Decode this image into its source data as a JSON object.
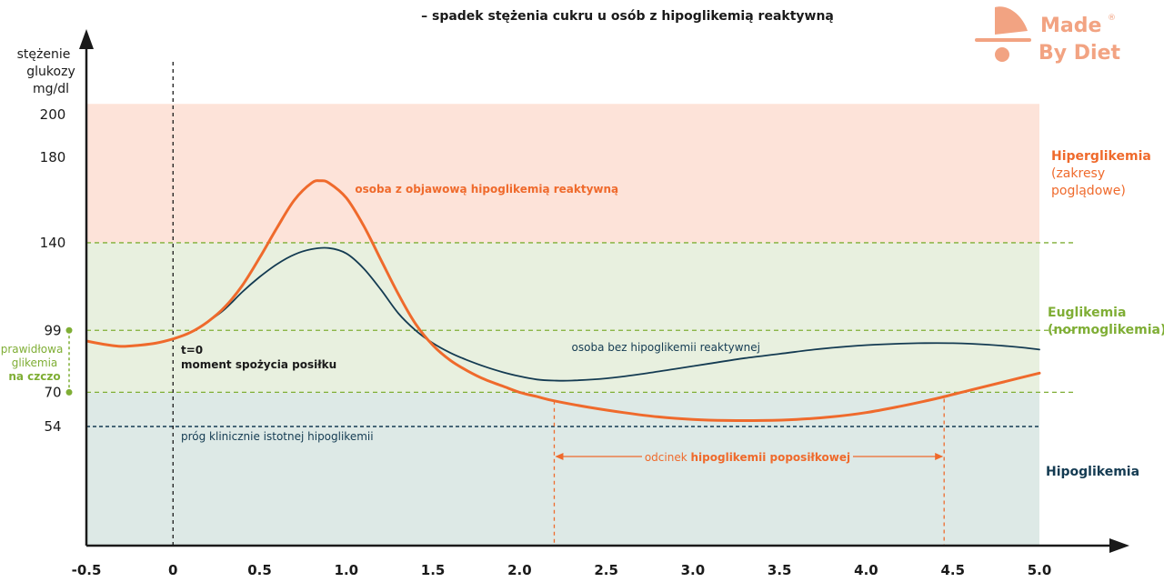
{
  "subtitle": "– spadek stężenia cukru u osób z hipoglikemią reaktywną",
  "logo": {
    "line1": "Made",
    "line2": "By Diet",
    "color": "#f2a382"
  },
  "colors": {
    "hyper_zone": "#fde3d9",
    "eu_zone": "#e8f0df",
    "hypo_zone": "#dde9e6",
    "orange": "#ef6a2c",
    "navy": "#143b52",
    "green": "#7fae35",
    "dark": "#1a1a1a"
  },
  "chart_data": {
    "type": "line",
    "title": "",
    "subtitle": "– spadek stężenia cukru u osób z hipoglikemią reaktywną",
    "ylabel": [
      "stężenie",
      "glukozy",
      "mg/dl"
    ],
    "xlabel": "",
    "xlim": [
      -0.5,
      5.0
    ],
    "x_ticks": [
      "-0.5",
      "0",
      "0.5",
      "1.0",
      "1.5",
      "2.0",
      "2.5",
      "3.0",
      "3.5",
      "4.0",
      "4.5",
      "5.0"
    ],
    "y_ticks": [
      200,
      180,
      140,
      99,
      70,
      54
    ],
    "zones": [
      {
        "name": "Hiperglikemia",
        "note": [
          "(zakresy",
          "poglądowe)"
        ],
        "from": 140,
        "to": 205
      },
      {
        "name": "Euglikemia",
        "note": [
          "(normoglikemia)"
        ],
        "from": 70,
        "to": 140
      },
      {
        "name": "Hipoglikemia",
        "from": 0,
        "to": 70
      }
    ],
    "reference_lines": [
      {
        "y": 140,
        "style": "dashed-green"
      },
      {
        "y": 99,
        "style": "dashed-green"
      },
      {
        "y": 70,
        "style": "dashed-green"
      },
      {
        "y": 54,
        "style": "dashed-navy",
        "label": "próg klinicznie istotnej hipoglikemii"
      }
    ],
    "meal_marker": {
      "x": 0,
      "label_1": "t=0",
      "label_2": "moment spożycia posiłku"
    },
    "fasting_bracket": {
      "from": 70,
      "to": 99,
      "label_1": "prawidłowa",
      "label_2": "glikemia",
      "label_3": "na czczo"
    },
    "series": [
      {
        "name": "osoba z objawową hipoglikemią reaktywną",
        "color": "#ef6a2c",
        "x": [
          -0.5,
          -0.4,
          -0.3,
          -0.2,
          -0.1,
          0,
          0.1,
          0.2,
          0.3,
          0.4,
          0.5,
          0.6,
          0.7,
          0.8,
          0.85,
          0.9,
          1.0,
          1.1,
          1.2,
          1.3,
          1.4,
          1.5,
          1.6,
          1.7,
          1.8,
          1.9,
          2.0,
          2.1,
          2.2,
          2.4,
          2.6,
          2.8,
          3.0,
          3.2,
          3.4,
          3.6,
          3.8,
          4.0,
          4.2,
          4.4,
          4.6,
          4.8,
          5.0
        ],
        "y": [
          94,
          92.5,
          91.5,
          92,
          93,
          95,
          98,
          103,
          110,
          120,
          133,
          147,
          160,
          168,
          169,
          168,
          161,
          148,
          132,
          116,
          102,
          92,
          85,
          80,
          76,
          73,
          70,
          68,
          66,
          63,
          60.5,
          58.5,
          57.3,
          56.8,
          56.8,
          57.3,
          58.5,
          60.5,
          63.5,
          67,
          71,
          75,
          79
        ]
      },
      {
        "name": "osoba bez hipoglikemii reaktywnej",
        "color": "#143b52",
        "x": [
          -0.5,
          -0.4,
          -0.3,
          -0.2,
          -0.1,
          0,
          0.1,
          0.2,
          0.3,
          0.4,
          0.5,
          0.6,
          0.7,
          0.8,
          0.9,
          1.0,
          1.1,
          1.2,
          1.3,
          1.4,
          1.5,
          1.6,
          1.7,
          1.8,
          1.9,
          2.0,
          2.1,
          2.2,
          2.3,
          2.5,
          2.7,
          2.9,
          3.1,
          3.3,
          3.5,
          3.7,
          3.9,
          4.1,
          4.3,
          4.5,
          4.7,
          4.9,
          5.0
        ],
        "y": [
          94,
          92.5,
          91.5,
          92,
          93,
          95,
          98,
          103,
          109,
          117,
          124,
          130,
          134.5,
          137,
          137.5,
          135,
          128,
          118,
          107,
          99,
          93,
          88.5,
          85,
          82,
          79.5,
          77.5,
          76,
          75.5,
          75.5,
          76.5,
          78.5,
          81,
          83.5,
          86,
          88,
          90,
          91.5,
          92.5,
          93,
          93,
          92.3,
          91,
          90
        ]
      }
    ],
    "annotations": [
      {
        "text": "osoba z objawową hipoglikemią reaktywną",
        "x": 1.05,
        "y": 165,
        "color": "#ef6a2c"
      },
      {
        "text": "osoba bez hipoglikemii reaktywnej",
        "x": 2.3,
        "y": 91,
        "color": "#143b52"
      }
    ],
    "span": {
      "from": 2.2,
      "to": 4.45,
      "y": 44,
      "text_normal": "odcinek ",
      "text_bold": "hipoglikemii poposiłkowej"
    }
  }
}
